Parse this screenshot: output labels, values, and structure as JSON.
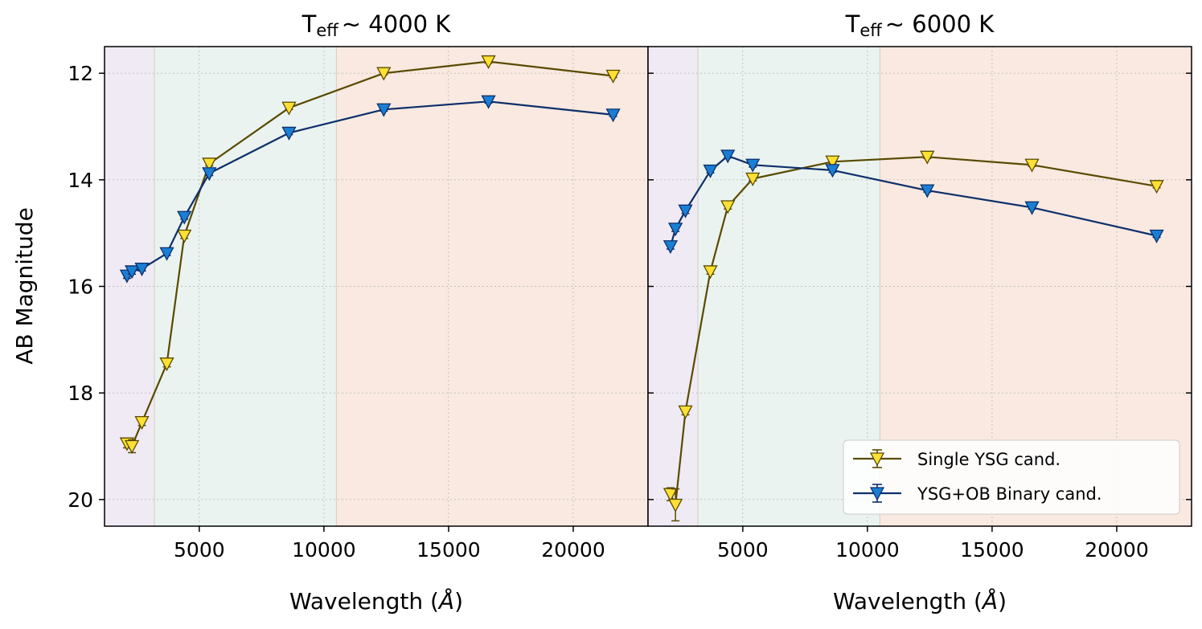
{
  "figure": {
    "ylabel": "AB Magnitude",
    "legend": {
      "location": "lower-right",
      "entries": [
        {
          "label": "Single YSG cand.",
          "color": "#5a4a00",
          "marker_fill": "#ffe033"
        },
        {
          "label": "YSG+OB Binary cand.",
          "color": "#0d2f6b",
          "marker_fill": "#1a7fd4"
        }
      ]
    },
    "band_colors": {
      "uv": "#efeaf4",
      "optical": "#eaf3ef",
      "ir": "#f9e9e0"
    },
    "bands_angstrom": {
      "uv": [
        1200,
        3200
      ],
      "optical": [
        3200,
        10500
      ],
      "ir": [
        10500,
        23000
      ]
    }
  },
  "chart_data": [
    {
      "type": "line",
      "title_main": "T",
      "title_sub": "eff",
      "title_rest": "~  4000 K",
      "xlabel_main": "Wavelength (",
      "xlabel_unit": "Å",
      "xlabel_end": ")",
      "xlim": [
        1200,
        23000
      ],
      "ylim": [
        20.5,
        11.5
      ],
      "xticks": [
        5000,
        10000,
        15000,
        20000
      ],
      "yticks": [
        12,
        14,
        16,
        18,
        20
      ],
      "grid": true,
      "series": [
        {
          "name": "Single YSG cand.",
          "x": [
            2100,
            2300,
            2700,
            3700,
            4400,
            5400,
            8600,
            12400,
            16600,
            21600
          ],
          "y": [
            18.95,
            19.0,
            18.55,
            17.45,
            15.05,
            13.7,
            12.65,
            12.0,
            11.78,
            12.05
          ],
          "err": [
            0.08,
            0.12,
            0.06,
            0.06,
            0.05,
            0.04,
            0.03,
            0.03,
            0.03,
            0.03
          ]
        },
        {
          "name": "YSG+OB Binary cand.",
          "x": [
            2100,
            2300,
            2700,
            3700,
            4400,
            5400,
            8600,
            12400,
            16600,
            21600
          ],
          "y": [
            15.8,
            15.72,
            15.67,
            15.38,
            14.7,
            13.88,
            13.12,
            12.68,
            12.53,
            12.78
          ],
          "err": [
            0.05,
            0.05,
            0.04,
            0.04,
            0.04,
            0.04,
            0.03,
            0.03,
            0.03,
            0.03
          ]
        }
      ]
    },
    {
      "type": "line",
      "title_main": "T",
      "title_sub": "eff",
      "title_rest": "~  6000 K",
      "xlabel_main": "Wavelength (",
      "xlabel_unit": "Å",
      "xlabel_end": ")",
      "xlim": [
        1200,
        23000
      ],
      "ylim": [
        20.5,
        11.5
      ],
      "xticks": [
        5000,
        10000,
        15000,
        20000
      ],
      "yticks": [
        12,
        14,
        16,
        18,
        20
      ],
      "grid": true,
      "series": [
        {
          "name": "Single YSG cand.",
          "x": [
            2100,
            2300,
            2700,
            3700,
            4400,
            5400,
            8600,
            12400,
            16600,
            21600
          ],
          "y": [
            19.9,
            20.1,
            18.35,
            15.72,
            14.5,
            13.98,
            13.66,
            13.57,
            13.72,
            14.12
          ],
          "err": [
            0.12,
            0.3,
            0.06,
            0.05,
            0.05,
            0.04,
            0.03,
            0.03,
            0.03,
            0.03
          ]
        },
        {
          "name": "YSG+OB Binary cand.",
          "x": [
            2100,
            2300,
            2700,
            3700,
            4400,
            5400,
            8600,
            12400,
            16600,
            21600
          ],
          "y": [
            15.25,
            14.92,
            14.58,
            13.83,
            13.55,
            13.72,
            13.82,
            14.2,
            14.52,
            15.05
          ],
          "err": [
            0.05,
            0.05,
            0.05,
            0.04,
            0.04,
            0.04,
            0.04,
            0.03,
            0.03,
            0.03
          ]
        }
      ]
    }
  ]
}
